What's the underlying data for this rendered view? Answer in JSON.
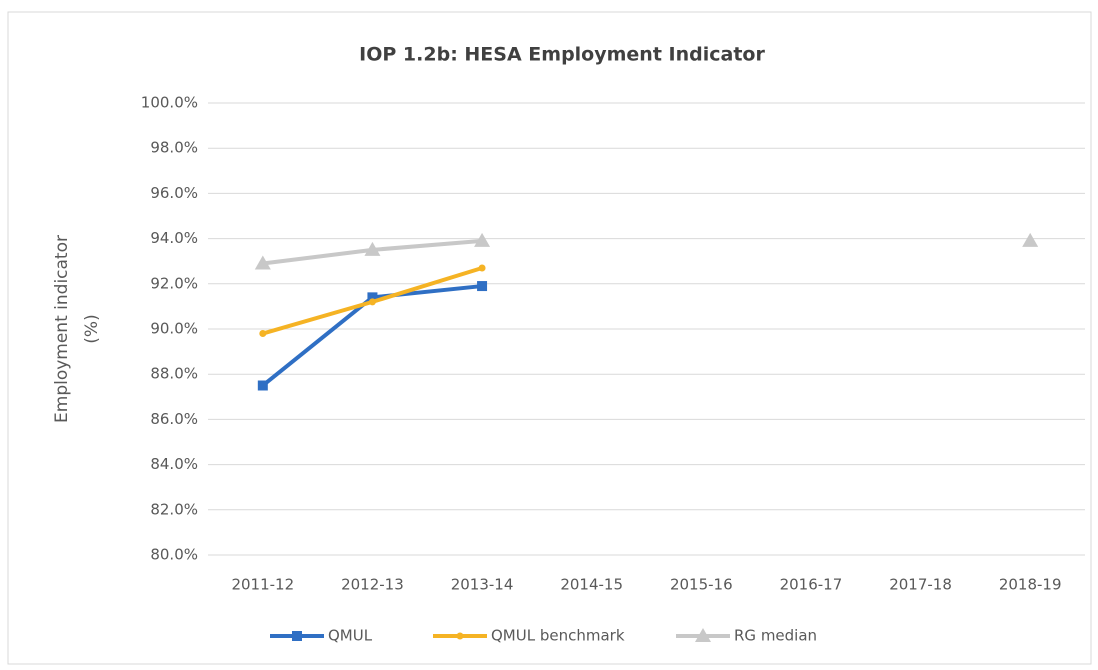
{
  "chart_data": {
    "type": "line",
    "title": "IOP 1.2b: HESA Employment Indicator",
    "ylabel": [
      "Employment indicator",
      "(%)"
    ],
    "categories": [
      "2011-12",
      "2012-13",
      "2013-14",
      "2014-15",
      "2015-16",
      "2016-17",
      "2017-18",
      "2018-19"
    ],
    "series": [
      {
        "name": "QMUL",
        "color": "#2f6fc4",
        "marker": "square",
        "values": [
          87.5,
          91.4,
          91.9,
          null,
          null,
          null,
          null,
          null
        ]
      },
      {
        "name": "QMUL benchmark",
        "color": "#f5b324",
        "marker": "circle",
        "values": [
          89.8,
          91.2,
          92.7,
          null,
          null,
          null,
          null,
          null
        ]
      },
      {
        "name": "RG median",
        "color": "#c8c8c8",
        "marker": "triangle",
        "values": [
          92.9,
          93.5,
          93.9,
          null,
          null,
          null,
          null,
          93.9
        ]
      }
    ],
    "ylim": [
      80,
      100
    ],
    "yticks": [
      {
        "value": 80,
        "label": "80.0%"
      },
      {
        "value": 82,
        "label": "82.0%"
      },
      {
        "value": 84,
        "label": "84.0%"
      },
      {
        "value": 86,
        "label": "86.0%"
      },
      {
        "value": 88,
        "label": "88.0%"
      },
      {
        "value": 90,
        "label": "90.0%"
      },
      {
        "value": 92,
        "label": "92.0%"
      },
      {
        "value": 94,
        "label": "94.0%"
      },
      {
        "value": 96,
        "label": "96.0%"
      },
      {
        "value": 98,
        "label": "98.0%"
      },
      {
        "value": 100,
        "label": "100.0%"
      }
    ],
    "grid": true,
    "legend": "bottom"
  }
}
